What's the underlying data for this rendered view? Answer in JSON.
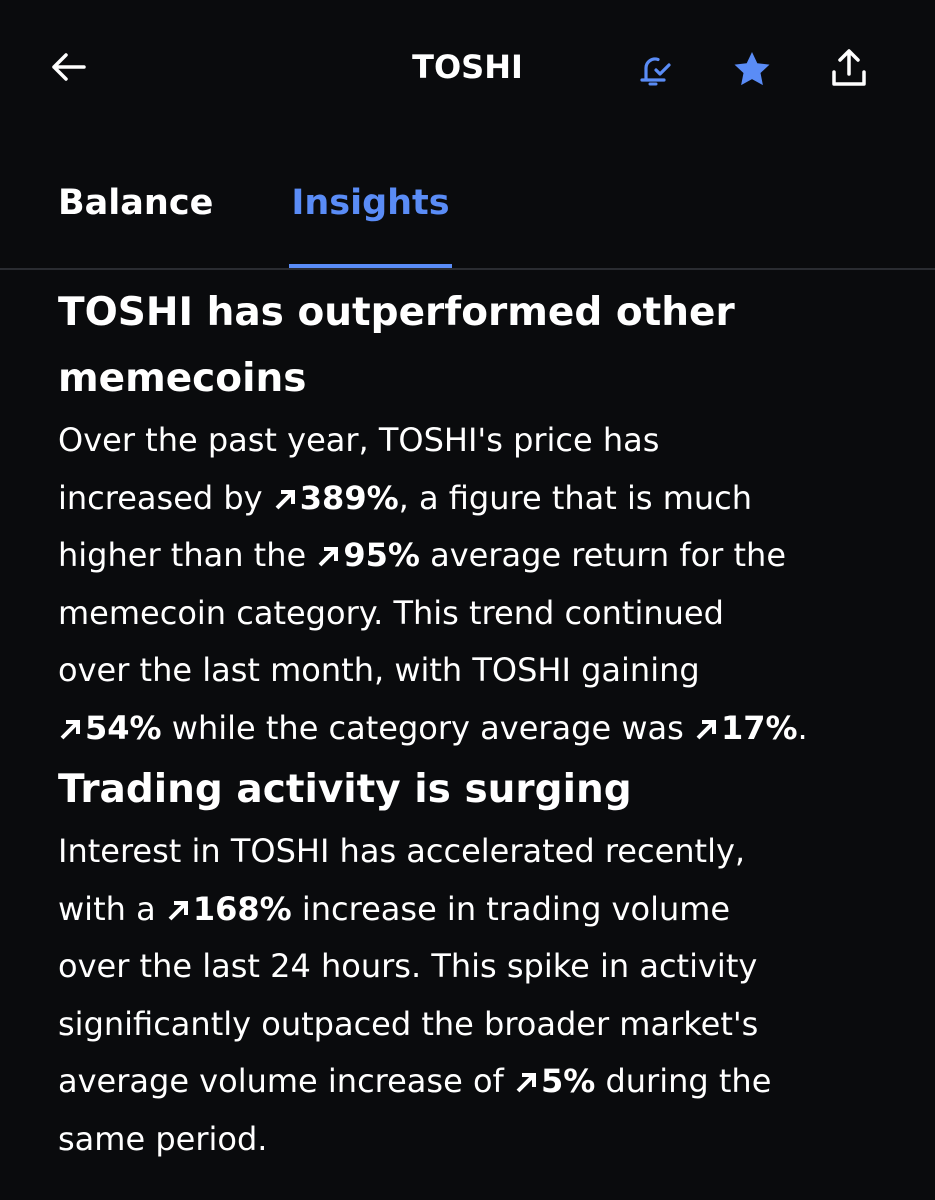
{
  "header": {
    "title": "TOSHI"
  },
  "tabs": [
    "Balance",
    "Insights"
  ],
  "active_tab": 1,
  "insights": [
    {
      "heading": "TOSHI has outperformed other memecoins",
      "lines": [
        [
          "Over the past year, TOSHI's price has"
        ],
        [
          "increased by ",
          {
            "up": "389%"
          },
          ", a figure that is much"
        ],
        [
          "higher than the ",
          {
            "up": "95%"
          },
          " average return for the"
        ],
        [
          "memecoin category. This trend continued"
        ],
        [
          "over the last month, with TOSHI gaining"
        ],
        [
          {
            "up": "54%"
          },
          " while the category average was ",
          {
            "up": "17%"
          },
          "."
        ]
      ]
    },
    {
      "heading": "Trading activity is surging",
      "lines": [
        [
          "Interest in TOSHI has accelerated recently,"
        ],
        [
          "with a ",
          {
            "up": "168%"
          },
          " increase in trading volume"
        ],
        [
          "over the last 24 hours. This spike in activity"
        ],
        [
          "significantly outpaced the broader market's"
        ],
        [
          "average volume increase of ",
          {
            "up": "5%"
          },
          " during the"
        ],
        [
          "same period."
        ]
      ]
    }
  ]
}
